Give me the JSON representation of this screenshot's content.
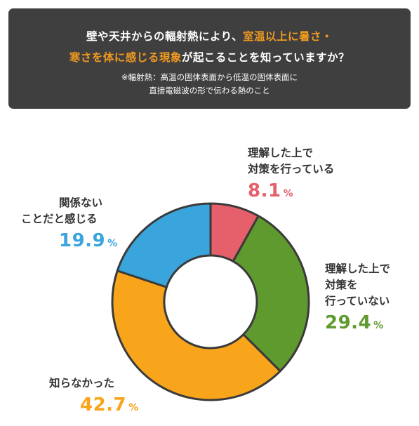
{
  "header": {
    "line1": "壁や天井からの輻射熱により、",
    "line1_highlight": "室温以上に暑さ・",
    "line2_highlight": "寒さを体に感じる現象",
    "line2": "が起こることを知っていますか？",
    "note1": "※輻射熱：高温の固体表面から低温の固体表面に",
    "note2": "直接電磁波の形で伝わる熱のこと"
  },
  "colors": {
    "header_bg": "#3f3f3f",
    "highlight": "#f19a1f",
    "slice_understood_acting": "#e5606a",
    "slice_understood_not_acting": "#5f9a2e",
    "slice_did_not_know": "#f9a51b",
    "slice_irrelevant": "#3aa5dc"
  },
  "chart_data": {
    "type": "pie",
    "donut": true,
    "title": "壁や天井からの輻射熱により、室温以上に暑さ・寒さを体に感じる現象が起こることを知っていますか？",
    "slices": [
      {
        "label": "理解した上で対策を行っている",
        "lines": [
          "理解した上で",
          "対策を行っている"
        ],
        "value": 8.1,
        "unit": "%",
        "color": "#e5606a"
      },
      {
        "label": "理解した上で対策を行っていない",
        "lines": [
          "理解した上で",
          "対策を",
          "行っていない"
        ],
        "value": 29.4,
        "unit": "%",
        "color": "#5f9a2e"
      },
      {
        "label": "知らなかった",
        "lines": [
          "知らなかった"
        ],
        "value": 42.7,
        "unit": "%",
        "color": "#f9a51b"
      },
      {
        "label": "関係ないことだと感じる",
        "lines": [
          "関係ない",
          "ことだと感じる"
        ],
        "value": 19.9,
        "unit": "%",
        "color": "#3aa5dc"
      }
    ]
  }
}
